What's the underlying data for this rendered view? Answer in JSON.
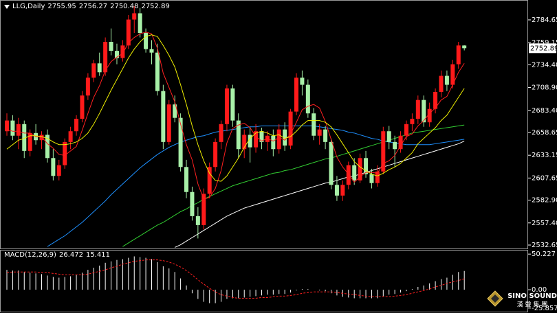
{
  "chart_data": [
    {
      "type": "candlestick",
      "symbol": "LLG,Daily",
      "ylim": [
        2528.8,
        2806.9
      ],
      "yticks": [
        2784.65,
        2759.15,
        {
          "value": 2734.4,
          "label": "2734.40"
        },
        {
          "value": 2708.9,
          "label": "2708.90"
        },
        {
          "value": 2683.4,
          "label": "2683.40"
        },
        2658.65,
        2633.15,
        2607.65,
        {
          "value": 2582.9,
          "label": "2582.90"
        },
        {
          "value": 2557.4,
          "label": "2557.40"
        },
        2532.65
      ],
      "up_color": "#ff1a1a",
      "down_color": "#a8f0a8",
      "open": [
        2660,
        2672,
        2655,
        2668,
        2638,
        2658,
        2650,
        2656,
        2630,
        2610,
        2622,
        2648,
        2660,
        2674,
        2700,
        2720,
        2736,
        2726,
        2760,
        2750,
        2742,
        2756,
        2785,
        2792,
        2770,
        2752,
        2748,
        2705,
        2648,
        2690,
        2675,
        2620,
        2592,
        2565,
        2555,
        2590,
        2620,
        2648,
        2668,
        2708,
        2672,
        2640,
        2656,
        2642,
        2660,
        2648,
        2655,
        2640,
        2662,
        2644,
        2682,
        2720,
        2712,
        2680,
        2655,
        2662,
        2648,
        2600,
        2588,
        2600,
        2622,
        2605,
        2630,
        2612,
        2602,
        2615,
        2660,
        2648,
        2640,
        2655,
        2668,
        2674,
        2695,
        2670,
        2685,
        2704,
        2722,
        2712,
        2735,
        2755.95
      ],
      "high": [
        2680,
        2678,
        2675,
        2672,
        2662,
        2668,
        2660,
        2662,
        2640,
        2628,
        2652,
        2665,
        2678,
        2705,
        2725,
        2740,
        2748,
        2765,
        2775,
        2758,
        2762,
        2790,
        2800,
        2798,
        2775,
        2762,
        2758,
        2712,
        2695,
        2700,
        2680,
        2628,
        2598,
        2575,
        2596,
        2625,
        2652,
        2672,
        2712,
        2712,
        2680,
        2662,
        2665,
        2668,
        2664,
        2660,
        2662,
        2668,
        2670,
        2685,
        2725,
        2728,
        2718,
        2686,
        2668,
        2666,
        2652,
        2610,
        2605,
        2626,
        2630,
        2635,
        2638,
        2618,
        2622,
        2665,
        2666,
        2655,
        2660,
        2672,
        2680,
        2700,
        2700,
        2692,
        2708,
        2728,
        2728,
        2740,
        2760,
        2756.27
      ],
      "low": [
        2655,
        2650,
        2640,
        2630,
        2632,
        2645,
        2640,
        2625,
        2605,
        2605,
        2618,
        2640,
        2655,
        2670,
        2695,
        2715,
        2722,
        2722,
        2745,
        2735,
        2738,
        2752,
        2770,
        2765,
        2748,
        2735,
        2700,
        2640,
        2645,
        2670,
        2615,
        2585,
        2560,
        2540,
        2550,
        2585,
        2615,
        2640,
        2660,
        2665,
        2630,
        2630,
        2625,
        2636,
        2640,
        2638,
        2632,
        2635,
        2638,
        2640,
        2678,
        2700,
        2675,
        2650,
        2645,
        2640,
        2595,
        2582,
        2582,
        2595,
        2600,
        2602,
        2608,
        2596,
        2598,
        2612,
        2640,
        2620,
        2636,
        2650,
        2660,
        2668,
        2665,
        2665,
        2680,
        2698,
        2705,
        2708,
        2730,
        2750.48
      ],
      "close": [
        2672,
        2655,
        2668,
        2638,
        2658,
        2650,
        2656,
        2630,
        2610,
        2622,
        2648,
        2660,
        2674,
        2700,
        2720,
        2736,
        2726,
        2760,
        2750,
        2742,
        2756,
        2785,
        2792,
        2770,
        2752,
        2748,
        2705,
        2648,
        2690,
        2675,
        2620,
        2592,
        2565,
        2555,
        2590,
        2620,
        2648,
        2668,
        2708,
        2672,
        2640,
        2656,
        2642,
        2660,
        2648,
        2655,
        2640,
        2662,
        2644,
        2682,
        2720,
        2712,
        2680,
        2655,
        2662,
        2648,
        2600,
        2588,
        2600,
        2622,
        2605,
        2630,
        2612,
        2602,
        2615,
        2660,
        2648,
        2640,
        2655,
        2668,
        2674,
        2695,
        2670,
        2685,
        2704,
        2722,
        2712,
        2735,
        2756,
        2752.89
      ],
      "series": [
        {
          "color": "#ff2020",
          "values": [
            2662,
            2660,
            2660,
            2658,
            2658,
            2654,
            2654,
            2646,
            2641,
            2634,
            2633,
            2638,
            2643,
            2661,
            2680,
            2698,
            2711,
            2728,
            2738,
            2743,
            2747,
            2759,
            2765,
            2769,
            2771,
            2769,
            2753,
            2725,
            2709,
            2693,
            2668,
            2645,
            2628,
            2601,
            2584,
            2586,
            2596,
            2616,
            2647,
            2663,
            2667,
            2669,
            2664,
            2654,
            2649,
            2652,
            2649,
            2653,
            2650,
            2657,
            2670,
            2684,
            2688,
            2690,
            2686,
            2671,
            2651,
            2631,
            2620,
            2612,
            2603,
            2609,
            2614,
            2614,
            2613,
            2624,
            2627,
            2633,
            2644,
            2654,
            2657,
            2666,
            2672,
            2680,
            2686,
            2695,
            2699,
            2712,
            2726,
            2736
          ]
        },
        {
          "color": "#f0f000",
          "values": [
            2640,
            2645,
            2650,
            2652,
            2655,
            2655,
            2654,
            2652,
            2648,
            2645,
            2645,
            2646,
            2648,
            2652,
            2658,
            2668,
            2680,
            2693,
            2706,
            2718,
            2730,
            2742,
            2752,
            2760,
            2766,
            2768,
            2766,
            2756,
            2745,
            2732,
            2712,
            2690,
            2666,
            2645,
            2627,
            2613,
            2605,
            2604,
            2610,
            2620,
            2630,
            2642,
            2652,
            2658,
            2660,
            2658,
            2655,
            2656,
            2652,
            2654,
            2660,
            2667,
            2672,
            2672,
            2672,
            2670,
            2665,
            2656,
            2646,
            2636,
            2626,
            2620,
            2616,
            2612,
            2610,
            2613,
            2617,
            2620,
            2624,
            2630,
            2636,
            2646,
            2652,
            2658,
            2664,
            2672,
            2678,
            2688,
            2698,
            2708
          ]
        },
        {
          "color": "#1e90ff",
          "values": [
            null,
            null,
            null,
            null,
            null,
            null,
            null,
            2531,
            2535,
            2539,
            2543,
            2548,
            2553,
            2558,
            2564,
            2570,
            2576,
            2582,
            2589,
            2595,
            2601,
            2607,
            2613,
            2619,
            2624,
            2629,
            2634,
            2638,
            2642,
            2645,
            2648,
            2650,
            2652,
            2654,
            2655,
            2657,
            2659,
            2660,
            2661,
            2662,
            2663,
            2664,
            2665,
            2665,
            2666,
            2666,
            2666,
            2666,
            2666,
            2666,
            2666,
            2666,
            2666,
            2666,
            2665,
            2664,
            2663,
            2662,
            2661,
            2659,
            2658,
            2656,
            2654,
            2652,
            2651,
            2649,
            2648,
            2647,
            2646,
            2645,
            2645,
            2645,
            2645,
            2645,
            2646,
            2647,
            2648,
            2649,
            2650,
            2651
          ]
        },
        {
          "color": "#32cd32",
          "values": [
            null,
            null,
            null,
            null,
            null,
            null,
            null,
            null,
            null,
            null,
            null,
            null,
            null,
            null,
            null,
            null,
            null,
            null,
            null,
            null,
            2531,
            2535,
            2539,
            2543,
            2547,
            2551,
            2555,
            2558,
            2562,
            2566,
            2570,
            2573,
            2577,
            2580,
            2584,
            2587,
            2590,
            2593,
            2596,
            2599,
            2601,
            2603,
            2605,
            2607,
            2609,
            2611,
            2613,
            2614,
            2616,
            2617,
            2619,
            2621,
            2623,
            2625,
            2627,
            2629,
            2630,
            2632,
            2634,
            2636,
            2638,
            2640,
            2642,
            2644,
            2646,
            2648,
            2650,
            2652,
            2654,
            2656,
            2658,
            2659,
            2660,
            2661,
            2662,
            2663,
            2664,
            2665,
            2666,
            2667
          ]
        },
        {
          "color": "#ffffff",
          "values": [
            null,
            null,
            null,
            null,
            null,
            null,
            null,
            null,
            null,
            null,
            null,
            null,
            null,
            null,
            null,
            null,
            null,
            null,
            null,
            null,
            null,
            null,
            null,
            null,
            null,
            null,
            null,
            null,
            null,
            2530,
            2533,
            2537,
            2541,
            2545,
            2549,
            2553,
            2557,
            2561,
            2565,
            2568,
            2571,
            2574,
            2576,
            2578,
            2580,
            2582,
            2584,
            2586,
            2588,
            2590,
            2592,
            2594,
            2596,
            2598,
            2600,
            2602,
            2603,
            2605,
            2607,
            2609,
            2610,
            2612,
            2614,
            2616,
            2618,
            2620,
            2622,
            2624,
            2626,
            2628,
            2630,
            2632,
            2634,
            2636,
            2638,
            2640,
            2642,
            2644,
            2646,
            2649
          ]
        }
      ]
    },
    {
      "type": "macd",
      "title": "MACD(12,26,9)",
      "ylim": [
        -30.86,
        55.23
      ],
      "yticks": [
        50.227,
        {
          "value": 0,
          "label": "0.00"
        },
        -25.857
      ],
      "series": [
        {
          "color": "#ffffff",
          "values": [
            28,
            27,
            27,
            25,
            24,
            23,
            22,
            20,
            18,
            17,
            18,
            19,
            21,
            24,
            28,
            31,
            34,
            38,
            40,
            42,
            43,
            45,
            47,
            46,
            45,
            43,
            39,
            33,
            30,
            25,
            16,
            6,
            -5,
            -13,
            -17,
            -19,
            -19,
            -17,
            -13,
            -12,
            -12,
            -11,
            -10,
            -9,
            -8,
            -7,
            -7,
            -6,
            -6,
            -4,
            -1,
            1,
            1,
            0,
            -1,
            -2,
            -5,
            -8,
            -10,
            -11,
            -12,
            -12,
            -12,
            -12,
            -12,
            -9,
            -7,
            -6,
            -4,
            -2,
            1,
            4,
            6,
            9,
            12,
            15,
            17,
            21,
            25,
            26.472
          ]
        },
        {
          "color": "#ff2020",
          "values": [
            24,
            25,
            25,
            25,
            25,
            25,
            24,
            24,
            23,
            22,
            21,
            21,
            21,
            21,
            22,
            24,
            26,
            28,
            31,
            33,
            36,
            38,
            40,
            41,
            42,
            42,
            42,
            41,
            39,
            36,
            32,
            27,
            21,
            14,
            8,
            2,
            -3,
            -7,
            -9,
            -11,
            -12,
            -12,
            -12,
            -12,
            -11,
            -11,
            -10,
            -9,
            -9,
            -8,
            -7,
            -5,
            -4,
            -3,
            -3,
            -3,
            -3,
            -4,
            -5,
            -6,
            -7,
            -8,
            -9,
            -10,
            -10,
            -10,
            -10,
            -9,
            -8,
            -7,
            -5,
            -3,
            -1,
            1,
            4,
            6,
            9,
            11,
            13,
            15.411
          ]
        }
      ]
    }
  ],
  "watermark": {
    "title": "SINO SOUND",
    "subtitle": "漢 聲 集 團"
  }
}
